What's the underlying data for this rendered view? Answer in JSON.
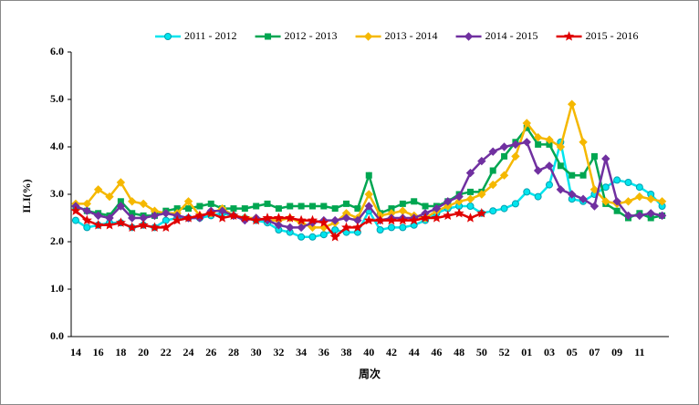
{
  "chart_data": {
    "type": "line",
    "x_label": "周次",
    "y_label": "ILI(%)",
    "categories": [
      "14",
      null,
      "16",
      null,
      "18",
      null,
      "20",
      null,
      "22",
      null,
      "24",
      null,
      "26",
      null,
      "28",
      null,
      "30",
      null,
      "32",
      null,
      "34",
      null,
      "36",
      null,
      "38",
      null,
      "40",
      null,
      "42",
      null,
      "44",
      null,
      "46",
      null,
      "48",
      null,
      "50",
      null,
      "52",
      null,
      "01",
      null,
      "03",
      null,
      "05",
      null,
      "07",
      null,
      "09",
      null,
      "11",
      null,
      null
    ],
    "ylim": [
      0,
      6
    ],
    "yticks": [
      {
        "value": 0,
        "label": "0.0"
      },
      {
        "value": 1,
        "label": "1.0"
      },
      {
        "value": 2,
        "label": "2.0"
      },
      {
        "value": 3,
        "label": "3.0"
      },
      {
        "value": 4,
        "label": "4.0"
      },
      {
        "value": 5,
        "label": "5.0"
      },
      {
        "value": 6,
        "label": "6.0"
      }
    ],
    "series": [
      {
        "name": "2011 - 2012",
        "color": "#00e5ee",
        "marker": "circle",
        "values": [
          2.45,
          2.3,
          2.35,
          2.4,
          2.4,
          2.3,
          2.35,
          2.3,
          2.45,
          2.5,
          2.5,
          2.5,
          2.55,
          2.6,
          2.55,
          2.5,
          2.45,
          2.4,
          2.25,
          2.2,
          2.1,
          2.1,
          2.15,
          2.25,
          2.2,
          2.2,
          2.65,
          2.25,
          2.3,
          2.3,
          2.35,
          2.45,
          2.6,
          2.7,
          2.75,
          2.75,
          2.6,
          2.65,
          2.7,
          2.8,
          3.05,
          2.95,
          3.2,
          4.1,
          2.9,
          2.85,
          3.0,
          3.15,
          3.3,
          3.25,
          3.15,
          3.0,
          2.75
        ]
      },
      {
        "name": "2012 - 2013",
        "color": "#00a651",
        "marker": "square",
        "values": [
          2.75,
          2.65,
          2.6,
          2.55,
          2.85,
          2.6,
          2.55,
          2.55,
          2.65,
          2.7,
          2.7,
          2.75,
          2.8,
          2.7,
          2.7,
          2.7,
          2.75,
          2.8,
          2.7,
          2.75,
          2.75,
          2.75,
          2.75,
          2.7,
          2.8,
          2.7,
          3.4,
          2.6,
          2.7,
          2.8,
          2.85,
          2.75,
          2.75,
          2.85,
          3.0,
          3.05,
          3.05,
          3.5,
          3.8,
          4.1,
          4.4,
          4.05,
          4.05,
          3.6,
          3.4,
          3.4,
          3.8,
          2.8,
          2.65,
          2.5,
          2.6,
          2.5,
          2.55
        ]
      },
      {
        "name": "2013 - 2014",
        "color": "#f5b800",
        "marker": "diamond",
        "values": [
          2.8,
          2.8,
          3.1,
          2.95,
          3.25,
          2.85,
          2.8,
          2.65,
          2.6,
          2.6,
          2.85,
          2.55,
          2.6,
          2.7,
          2.55,
          2.5,
          2.5,
          2.45,
          2.45,
          2.5,
          2.4,
          2.3,
          2.3,
          2.4,
          2.6,
          2.5,
          3.0,
          2.55,
          2.6,
          2.65,
          2.55,
          2.5,
          2.65,
          2.75,
          2.85,
          2.9,
          3.0,
          3.2,
          3.4,
          3.8,
          4.5,
          4.2,
          4.15,
          4.0,
          4.9,
          4.1,
          3.1,
          2.85,
          2.8,
          2.85,
          2.95,
          2.9,
          2.85
        ]
      },
      {
        "name": "2014 - 2015",
        "color": "#7030a0",
        "marker": "diamond",
        "values": [
          2.75,
          2.65,
          2.55,
          2.5,
          2.75,
          2.5,
          2.5,
          2.55,
          2.6,
          2.55,
          2.5,
          2.5,
          2.65,
          2.65,
          2.55,
          2.45,
          2.5,
          2.45,
          2.35,
          2.3,
          2.3,
          2.4,
          2.45,
          2.45,
          2.5,
          2.45,
          2.75,
          2.45,
          2.5,
          2.5,
          2.5,
          2.6,
          2.7,
          2.85,
          2.95,
          3.45,
          3.7,
          3.9,
          4.0,
          4.05,
          4.1,
          3.5,
          3.6,
          3.1,
          3.0,
          2.9,
          2.75,
          3.75,
          2.85,
          2.55,
          2.55,
          2.6,
          2.55
        ]
      },
      {
        "name": "2015 - 2016",
        "color": "#e00000",
        "marker": "star",
        "values": [
          2.65,
          2.45,
          2.35,
          2.35,
          2.4,
          2.3,
          2.35,
          2.3,
          2.3,
          2.45,
          2.5,
          2.55,
          2.6,
          2.5,
          2.55,
          2.5,
          2.45,
          2.5,
          2.5,
          2.5,
          2.45,
          2.45,
          2.4,
          2.1,
          2.3,
          2.3,
          2.45,
          2.45,
          2.45,
          2.45,
          2.45,
          2.5,
          2.5,
          2.55,
          2.6,
          2.5,
          2.6,
          null,
          null,
          null,
          null,
          null,
          null,
          null,
          null,
          null,
          null,
          null,
          null,
          null,
          null,
          null,
          null
        ]
      }
    ]
  }
}
